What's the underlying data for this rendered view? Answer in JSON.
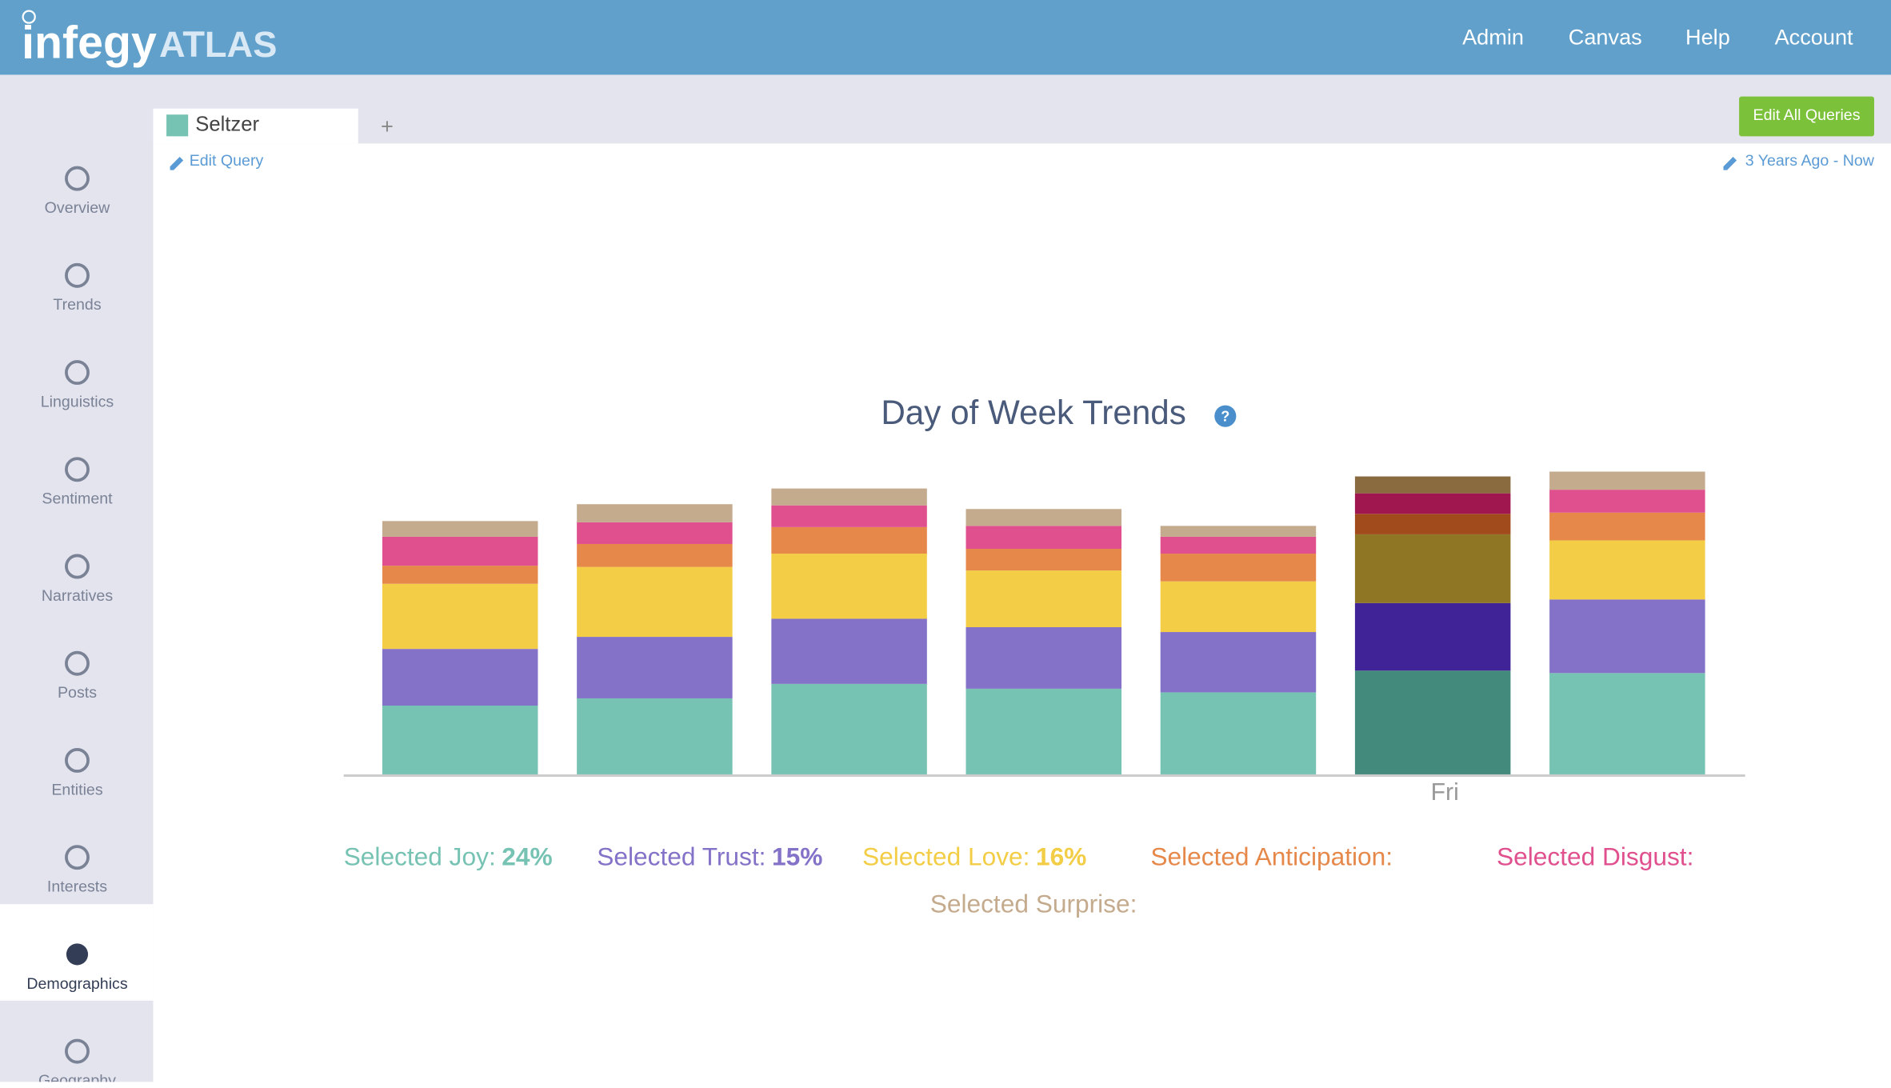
{
  "header": {
    "logo": "infegy",
    "logo_suffix": "ATLAS",
    "nav": [
      "Admin",
      "Canvas",
      "Help",
      "Account"
    ]
  },
  "sidebar": {
    "items": [
      "Overview",
      "Trends",
      "Linguistics",
      "Sentiment",
      "Narratives",
      "Posts",
      "Entities",
      "Interests",
      "Demographics",
      "Geography"
    ],
    "active": 8
  },
  "tabs": {
    "query": "Seltzer",
    "add": "+",
    "edit_all": "Edit All Queries"
  },
  "toolbar": {
    "edit_query": "Edit Query",
    "date_range": "3 Years Ago - Now"
  },
  "chart_data": {
    "type": "bar",
    "stacked": true,
    "title": "Day of Week Trends",
    "categories": [
      null,
      null,
      null,
      null,
      null,
      "Fri",
      null
    ],
    "highlight": 5,
    "series": [
      {
        "name": "Selected Joy:",
        "color": "#76c2b3",
        "highlight_color": "#438a7c",
        "total": {
          "value": 24,
          "label": "24%"
        },
        "values": [
          57,
          63,
          75,
          71,
          68,
          86,
          84
        ]
      },
      {
        "name": "Selected Trust:",
        "color": "#8471c8",
        "highlight_color": "#3f2397",
        "total": {
          "value": 15,
          "label": "15%"
        },
        "values": [
          47,
          51,
          54,
          51,
          50,
          56,
          61
        ]
      },
      {
        "name": "Selected Love:",
        "color": "#f2cd45",
        "highlight_color": "#8e7624",
        "total": {
          "value": 16,
          "label": "16%"
        },
        "values": [
          54,
          58,
          54,
          47,
          42,
          57,
          49
        ]
      },
      {
        "name": "Selected Anticipation:",
        "color": "#e5884a",
        "highlight_color": "#a14a1b",
        "values": [
          15,
          19,
          22,
          18,
          23,
          17,
          23
        ]
      },
      {
        "name": "Selected Disgust:",
        "color": "#e0508e",
        "highlight_color": "#a0174f",
        "values": [
          24,
          18,
          18,
          19,
          14,
          17,
          19
        ]
      },
      {
        "name": "Selected Surprise:",
        "color": "#c5ab8d",
        "highlight_color": "#8a6b3f",
        "values": [
          13,
          15,
          14,
          14,
          9,
          14,
          15
        ]
      }
    ]
  }
}
